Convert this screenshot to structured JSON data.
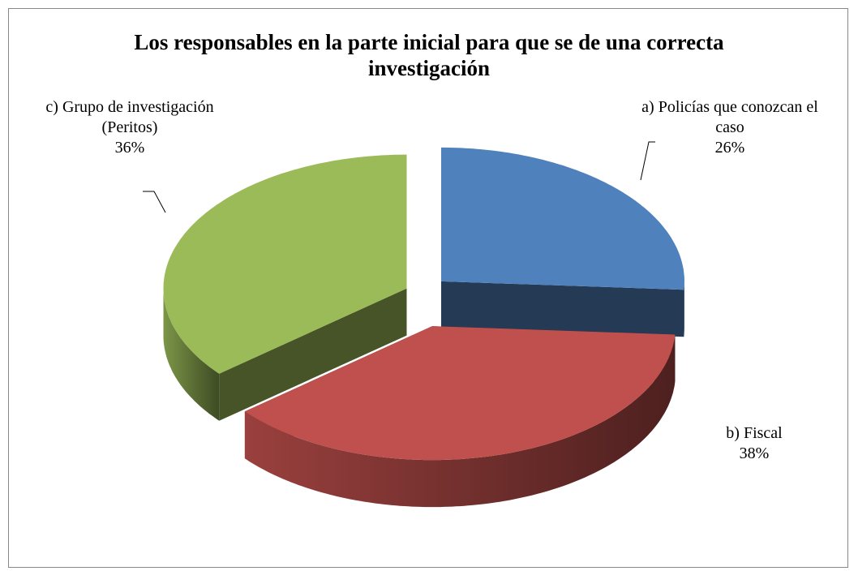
{
  "chart_data": {
    "type": "pie",
    "title": "Los responsables en la parte inicial para que se de una correcta investigación",
    "categories": [
      "a) Policías que conozcan el caso",
      "b) Fiscal",
      "c) Grupo de investigación (Peritos)"
    ],
    "values": [
      26,
      38,
      36
    ],
    "value_labels": [
      "26%",
      "38%",
      "36%"
    ],
    "colors": [
      "#4f81bd",
      "#c0504d",
      "#9bbb59"
    ]
  }
}
